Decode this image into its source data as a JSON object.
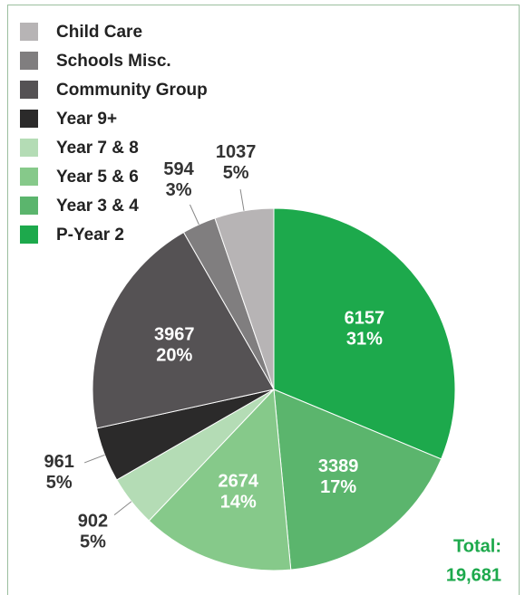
{
  "chart_data": {
    "type": "pie",
    "categories": [
      "Child Care",
      "Schools Misc.",
      "Community Group",
      "Year 9+",
      "Year 7 & 8",
      "Year 5 & 6",
      "Year 3 & 4",
      "P-Year 2"
    ],
    "values": [
      1037,
      594,
      3967,
      961,
      902,
      2674,
      3389,
      6157
    ],
    "percent_labels": [
      "5%",
      "3%",
      "20%",
      "5%",
      "5%",
      "14%",
      "17%",
      "31%"
    ],
    "colors": [
      "#b7b4b5",
      "#807e7f",
      "#555254",
      "#2b2a2a",
      "#b4dcb5",
      "#86c98a",
      "#5bb56d",
      "#1da94c"
    ],
    "total_label": "Total:",
    "total_value": "19,681"
  }
}
